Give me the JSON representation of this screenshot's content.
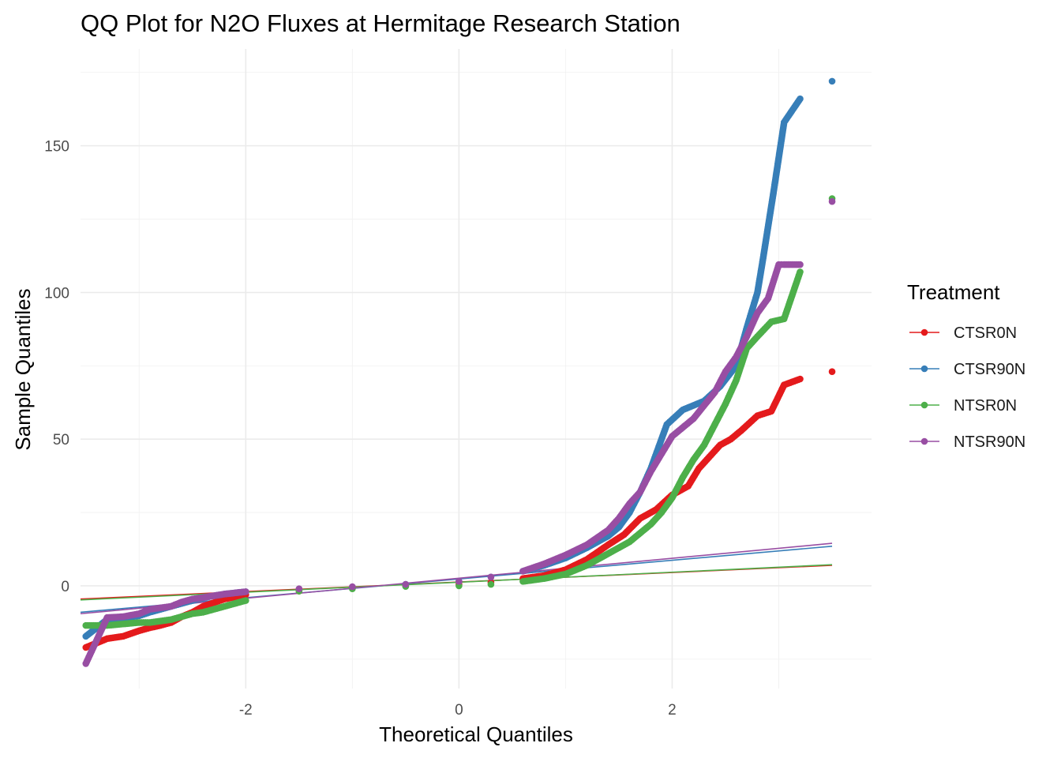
{
  "chart_data": {
    "type": "scatter",
    "title": "QQ Plot for N2O Fluxes at Hermitage Research Station",
    "xlabel": "Theoretical Quantiles",
    "ylabel": "Sample Quantiles",
    "xlim": [
      -3.55,
      3.87
    ],
    "ylim": [
      -35,
      183
    ],
    "x_ticks": [
      -2,
      0,
      2
    ],
    "y_ticks": [
      0,
      50,
      100,
      150
    ],
    "grid": true,
    "legend": {
      "title": "Treatment",
      "position": "right"
    },
    "series": [
      {
        "name": "CTSR0N",
        "color": "#E41A1C",
        "line": {
          "from": [
            -3.55,
            -4.5
          ],
          "to": [
            3.5,
            7.0
          ]
        },
        "points": [
          [
            -3.5,
            -21
          ],
          [
            -3.3,
            -18
          ],
          [
            -3.15,
            -17.2
          ],
          [
            -3.0,
            -15.3
          ],
          [
            -2.9,
            -14.3
          ],
          [
            -2.8,
            -13.5
          ],
          [
            -2.7,
            -12.5
          ],
          [
            -2.6,
            -10.5
          ],
          [
            -2.5,
            -9
          ],
          [
            -2.4,
            -7
          ],
          [
            -2.2,
            -4.5
          ],
          [
            -2.0,
            -3
          ],
          [
            -1.5,
            -1.8
          ],
          [
            -1.0,
            -0.8
          ],
          [
            -0.5,
            0
          ],
          [
            0.0,
            0.5
          ],
          [
            0.3,
            1.2
          ],
          [
            0.6,
            2.5
          ],
          [
            0.8,
            3.5
          ],
          [
            1.0,
            5.5
          ],
          [
            1.2,
            9
          ],
          [
            1.4,
            14
          ],
          [
            1.55,
            17.5
          ],
          [
            1.7,
            23
          ],
          [
            1.85,
            26
          ],
          [
            2.0,
            31
          ],
          [
            2.15,
            34
          ],
          [
            2.25,
            40
          ],
          [
            2.35,
            44
          ],
          [
            2.45,
            48
          ],
          [
            2.55,
            50
          ],
          [
            2.65,
            53
          ],
          [
            2.8,
            58
          ],
          [
            2.93,
            59.5
          ],
          [
            3.05,
            68.5
          ],
          [
            3.2,
            70.5
          ],
          [
            3.5,
            73
          ]
        ]
      },
      {
        "name": "CTSR90N",
        "color": "#377EB8",
        "line": {
          "from": [
            -3.55,
            -9.0
          ],
          "to": [
            3.5,
            13.5
          ]
        },
        "points": [
          [
            -3.5,
            -17.2
          ],
          [
            -3.3,
            -11.5
          ],
          [
            -3.15,
            -11
          ],
          [
            -3.0,
            -10.2
          ],
          [
            -2.9,
            -9
          ],
          [
            -2.8,
            -8
          ],
          [
            -2.7,
            -7
          ],
          [
            -2.6,
            -6
          ],
          [
            -2.5,
            -5
          ],
          [
            -2.4,
            -4
          ],
          [
            -2.2,
            -2.8
          ],
          [
            -2.0,
            -2
          ],
          [
            -1.5,
            -1.2
          ],
          [
            -1.0,
            -0.5
          ],
          [
            -0.5,
            0.5
          ],
          [
            0.0,
            1.5
          ],
          [
            0.3,
            3
          ],
          [
            0.6,
            5
          ],
          [
            0.8,
            7
          ],
          [
            1.0,
            9.5
          ],
          [
            1.2,
            13
          ],
          [
            1.4,
            17
          ],
          [
            1.5,
            20
          ],
          [
            1.6,
            25
          ],
          [
            1.7,
            32
          ],
          [
            1.8,
            40
          ],
          [
            1.9,
            50
          ],
          [
            1.95,
            55
          ],
          [
            2.1,
            60
          ],
          [
            2.3,
            63
          ],
          [
            2.45,
            68
          ],
          [
            2.6,
            75
          ],
          [
            2.7,
            88
          ],
          [
            2.8,
            100
          ],
          [
            2.85,
            111
          ],
          [
            2.95,
            134
          ],
          [
            3.05,
            158
          ],
          [
            3.2,
            166
          ],
          [
            3.5,
            172
          ]
        ]
      },
      {
        "name": "NTSR0N",
        "color": "#4DAF4A",
        "line": {
          "from": [
            -3.55,
            -4.8
          ],
          "to": [
            3.5,
            7.2
          ]
        },
        "points": [
          [
            -3.5,
            -13.5
          ],
          [
            -3.3,
            -13.5
          ],
          [
            -3.15,
            -13
          ],
          [
            -3.0,
            -12.5
          ],
          [
            -2.9,
            -12.5
          ],
          [
            -2.8,
            -12
          ],
          [
            -2.7,
            -11.5
          ],
          [
            -2.6,
            -10.5
          ],
          [
            -2.5,
            -9.5
          ],
          [
            -2.4,
            -9
          ],
          [
            -2.2,
            -7
          ],
          [
            -2.0,
            -5
          ],
          [
            -1.5,
            -1.8
          ],
          [
            -1.0,
            -1
          ],
          [
            -0.5,
            -0.2
          ],
          [
            0.0,
            0
          ],
          [
            0.3,
            0.5
          ],
          [
            0.6,
            1.5
          ],
          [
            0.8,
            2.5
          ],
          [
            1.0,
            4
          ],
          [
            1.2,
            7
          ],
          [
            1.4,
            11
          ],
          [
            1.6,
            15
          ],
          [
            1.8,
            21
          ],
          [
            1.9,
            25
          ],
          [
            2.0,
            30
          ],
          [
            2.1,
            37
          ],
          [
            2.2,
            43
          ],
          [
            2.3,
            48
          ],
          [
            2.4,
            55
          ],
          [
            2.5,
            62
          ],
          [
            2.6,
            70
          ],
          [
            2.7,
            81
          ],
          [
            2.8,
            85
          ],
          [
            2.93,
            90
          ],
          [
            3.05,
            91
          ],
          [
            3.2,
            107
          ],
          [
            3.5,
            132
          ]
        ]
      },
      {
        "name": "NTSR90N",
        "color": "#984EA3",
        "line": {
          "from": [
            -3.55,
            -9.5
          ],
          "to": [
            3.5,
            14.5
          ]
        },
        "points": [
          [
            -3.5,
            -26.5
          ],
          [
            -3.3,
            -10.8
          ],
          [
            -3.15,
            -10.5
          ],
          [
            -3.0,
            -9.5
          ],
          [
            -2.9,
            -8
          ],
          [
            -2.8,
            -7.5
          ],
          [
            -2.7,
            -7
          ],
          [
            -2.6,
            -5.5
          ],
          [
            -2.5,
            -4.5
          ],
          [
            -2.4,
            -4
          ],
          [
            -2.2,
            -2.8
          ],
          [
            -2.0,
            -2
          ],
          [
            -1.5,
            -1
          ],
          [
            -1.0,
            -0.3
          ],
          [
            -0.5,
            0.5
          ],
          [
            0.0,
            1.5
          ],
          [
            0.3,
            3
          ],
          [
            0.6,
            5
          ],
          [
            0.8,
            7.5
          ],
          [
            1.0,
            10.5
          ],
          [
            1.2,
            14
          ],
          [
            1.4,
            19
          ],
          [
            1.5,
            23
          ],
          [
            1.6,
            28
          ],
          [
            1.7,
            32
          ],
          [
            1.8,
            39
          ],
          [
            1.9,
            45
          ],
          [
            2.0,
            51
          ],
          [
            2.2,
            57
          ],
          [
            2.4,
            66
          ],
          [
            2.5,
            73
          ],
          [
            2.6,
            78
          ],
          [
            2.7,
            85
          ],
          [
            2.8,
            93
          ],
          [
            2.9,
            98
          ],
          [
            3.0,
            109.5
          ],
          [
            3.05,
            109.5
          ],
          [
            3.2,
            109.5
          ],
          [
            3.5,
            131
          ]
        ]
      }
    ]
  }
}
